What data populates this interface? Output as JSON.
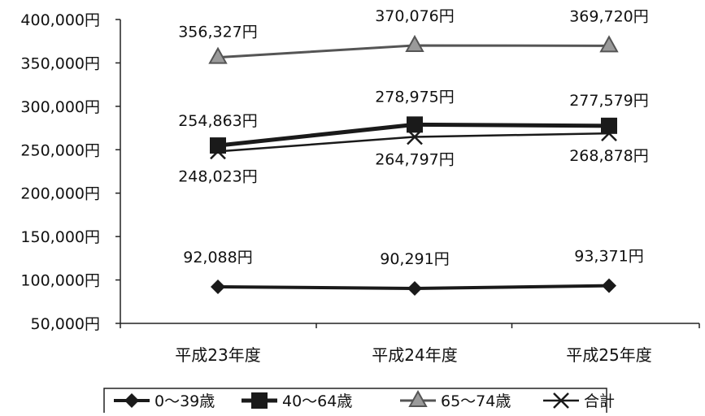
{
  "chart_data": {
    "type": "line",
    "categories": [
      "平成23年度",
      "平成24年度",
      "平成25年度"
    ],
    "ylim": [
      50000,
      400000
    ],
    "yticks": [
      50000,
      100000,
      150000,
      200000,
      250000,
      300000,
      350000,
      400000
    ],
    "ytick_labels": [
      "50,000円",
      "100,000円",
      "150,000円",
      "200,000円",
      "250,000円",
      "300,000円",
      "350,000円",
      "400,000円"
    ],
    "grid": false,
    "legend_position": "bottom",
    "series": [
      {
        "name": "0〜39歳",
        "marker": "diamond",
        "color": "#1a1a1a",
        "values": [
          92088,
          90291,
          93371
        ],
        "labels": [
          "92,088円",
          "90,291円",
          "93,371円"
        ]
      },
      {
        "name": "40〜64歳",
        "marker": "square",
        "color": "#1a1a1a",
        "values": [
          254863,
          278975,
          277579
        ],
        "labels": [
          "254,863円",
          "278,975円",
          "277,579円"
        ]
      },
      {
        "name": "65〜74歳",
        "marker": "triangle",
        "color": "#555555",
        "values": [
          356327,
          370076,
          369720
        ],
        "labels": [
          "356,327円",
          "370,076円",
          "369,720円"
        ]
      },
      {
        "name": "合計",
        "marker": "x",
        "color": "#1a1a1a",
        "values": [
          248023,
          264797,
          268878
        ],
        "labels": [
          "248,023円",
          "264,797円",
          "268,878円"
        ]
      }
    ]
  }
}
